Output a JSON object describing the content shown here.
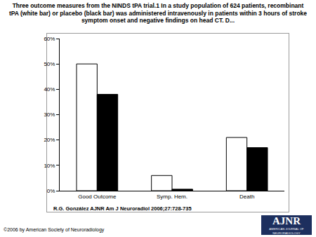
{
  "caption": "Three outcome measures from the NINDS tPA trial.1 In a study population of 624 patients, recombinant tPA (white bar) or placebo (black bar) was administered intravenously in patients within 3 hours of stroke symptom onset and negative findings on head CT. D...",
  "credit": "R.G. González AJNR Am J Neuroradiol 2006;27:728-735",
  "copyright": "©2006 by American Society of Neuroradiology",
  "logo": {
    "title": "AJNR",
    "subtitle": "AMERICAN JOURNAL OF NEURORADIOLOGY"
  },
  "chart_data": {
    "type": "bar",
    "categories": [
      "Good Outcome",
      "Symp. Hem.",
      "Death"
    ],
    "series": [
      {
        "color": "#ffffff",
        "values": [
          50,
          6,
          21
        ]
      },
      {
        "color": "#000000",
        "values": [
          38,
          0.6,
          17
        ]
      }
    ],
    "ylim": [
      0,
      60
    ],
    "yticks": [
      {
        "value": 0,
        "label": "0%"
      },
      {
        "value": 10,
        "label": "10%"
      },
      {
        "value": 20,
        "label": "20%"
      },
      {
        "value": 30,
        "label": "30%"
      },
      {
        "value": 40,
        "label": "40%"
      },
      {
        "value": 50,
        "label": "50%"
      },
      {
        "value": 60,
        "label": "60%"
      }
    ],
    "grid": false
  }
}
